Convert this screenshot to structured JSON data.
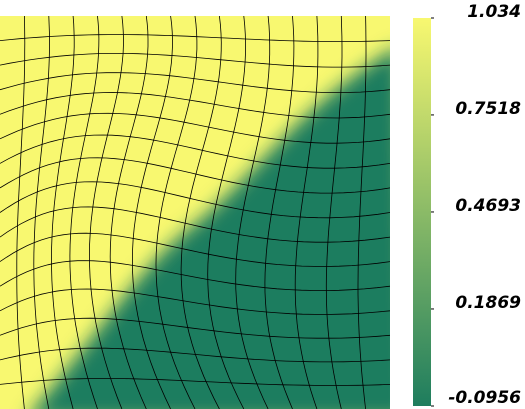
{
  "chart_data": {
    "type": "colorbar-field",
    "colorbar": {
      "clim": [
        -0.0956,
        1.034
      ],
      "ticks": [
        1.034,
        0.7518,
        0.4693,
        0.1869,
        -0.0956
      ],
      "colors": [
        "#1e7d5e",
        "#f8f870"
      ]
    }
  }
}
